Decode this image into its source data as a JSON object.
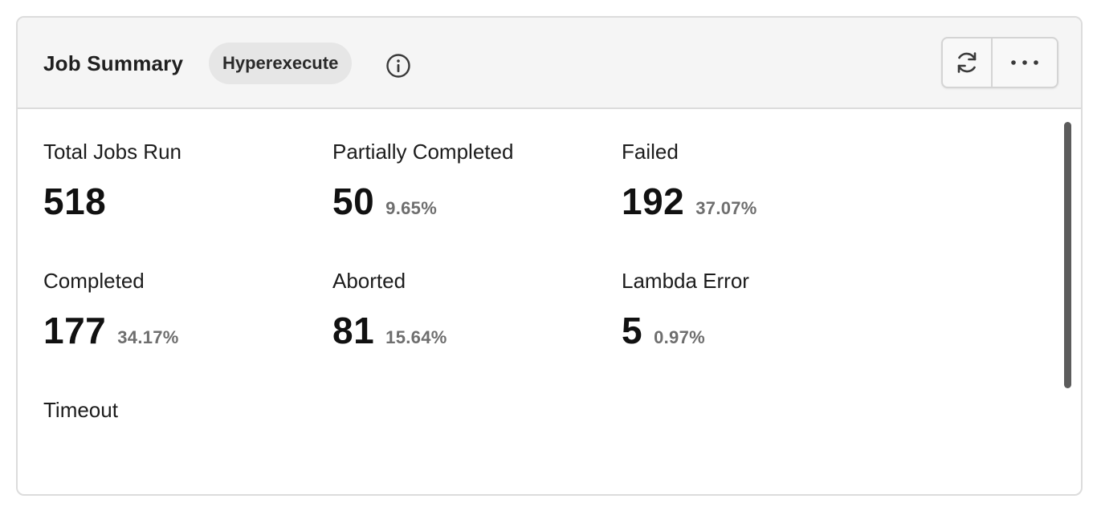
{
  "header": {
    "title": "Job Summary",
    "badge": "Hyperexecute",
    "info_icon": "info-icon",
    "refresh_icon": "refresh-icon",
    "more_icon": "more-horizontal-icon"
  },
  "metrics": [
    {
      "label": "Total Jobs Run",
      "value": "518",
      "percent": ""
    },
    {
      "label": "Partially Completed",
      "value": "50",
      "percent": "9.65%"
    },
    {
      "label": "Failed",
      "value": "192",
      "percent": "37.07%"
    },
    {
      "label": "Completed",
      "value": "177",
      "percent": "34.17%"
    },
    {
      "label": "Aborted",
      "value": "81",
      "percent": "15.64%"
    },
    {
      "label": "Lambda Error",
      "value": "5",
      "percent": "0.97%"
    },
    {
      "label": "Timeout",
      "value": "",
      "percent": ""
    }
  ],
  "colors": {
    "header_bg": "#f5f5f5",
    "border": "#dcdcdc",
    "badge_bg": "#e6e6e6",
    "percent_text": "#6e6e6e",
    "scrollbar": "#5c5c5c"
  }
}
